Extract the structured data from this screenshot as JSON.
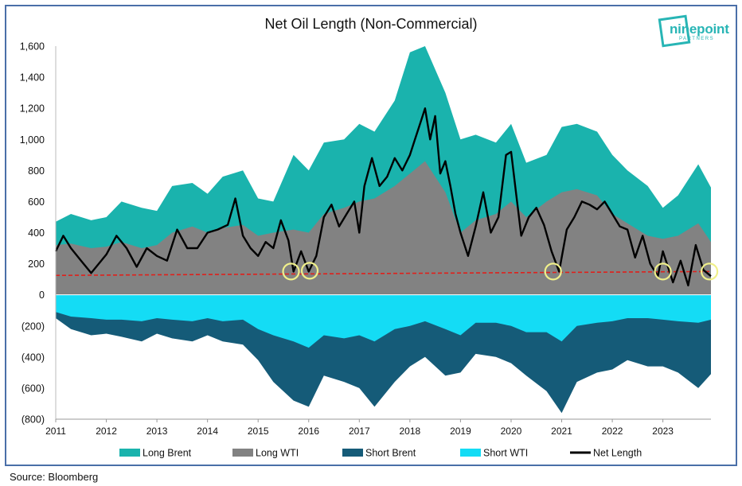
{
  "chart_data": {
    "type": "area",
    "title": "Net Oil Length (Non-Commercial)",
    "source": "Source: Bloomberg",
    "brand": {
      "name": "ninepoint",
      "sub": "PARTNERS"
    },
    "x_ticks": [
      "2011",
      "2012",
      "2013",
      "2014",
      "2015",
      "2016",
      "2017",
      "2018",
      "2019",
      "2020",
      "2021",
      "2022",
      "2023"
    ],
    "y_ticks": [
      "1,600",
      "1,400",
      "1,200",
      "1,000",
      "800",
      "600",
      "400",
      "200",
      "0",
      "(200)",
      "(400)",
      "(600)",
      "(800)"
    ],
    "ylim": [
      -800,
      1600
    ],
    "xlim": [
      2011.0,
      2023.95
    ],
    "colors": {
      "long_brent": "#1ab3ad",
      "long_wti": "#828282",
      "short_brent": "#155b78",
      "short_wti": "#14dcf5",
      "net": "#000000",
      "threshold": "#e0201b",
      "circle": "#f0f08a"
    },
    "threshold_line": {
      "start": [
        2011.0,
        125
      ],
      "end": [
        2023.95,
        150
      ]
    },
    "highlight_points": [
      [
        2015.65,
        150
      ],
      [
        2016.02,
        155
      ],
      [
        2020.83,
        150
      ],
      [
        2023.0,
        150
      ],
      [
        2023.92,
        150
      ]
    ],
    "legend": [
      {
        "key": "long_brent",
        "label": "Long Brent",
        "swatch": "box"
      },
      {
        "key": "long_wti",
        "label": "Long WTI",
        "swatch": "box"
      },
      {
        "key": "short_brent",
        "label": "Short Brent",
        "swatch": "box"
      },
      {
        "key": "short_wti",
        "label": "Short WTI",
        "swatch": "box"
      },
      {
        "key": "net",
        "label": "Net Length",
        "swatch": "line"
      }
    ],
    "series": [
      {
        "key": "long_total",
        "name": "Long Brent",
        "x": [
          2011.0,
          2011.3,
          2011.7,
          2012.0,
          2012.3,
          2012.7,
          2013.0,
          2013.3,
          2013.7,
          2014.0,
          2014.3,
          2014.7,
          2015.0,
          2015.3,
          2015.7,
          2016.0,
          2016.3,
          2016.7,
          2017.0,
          2017.3,
          2017.7,
          2018.0,
          2018.3,
          2018.7,
          2019.0,
          2019.3,
          2019.7,
          2020.0,
          2020.3,
          2020.7,
          2021.0,
          2021.3,
          2021.7,
          2022.0,
          2022.3,
          2022.7,
          2023.0,
          2023.3,
          2023.7,
          2023.95
        ],
        "values": [
          470,
          520,
          480,
          500,
          600,
          560,
          540,
          700,
          720,
          650,
          760,
          800,
          620,
          600,
          900,
          800,
          980,
          1000,
          1100,
          1050,
          1250,
          1560,
          1600,
          1300,
          1000,
          1030,
          980,
          1100,
          850,
          900,
          1080,
          1100,
          1050,
          900,
          800,
          700,
          560,
          640,
          840,
          690
        ]
      },
      {
        "key": "long_wti",
        "name": "Long WTI",
        "x": [
          2011.0,
          2011.3,
          2011.7,
          2012.0,
          2012.3,
          2012.7,
          2013.0,
          2013.3,
          2013.7,
          2014.0,
          2014.3,
          2014.7,
          2015.0,
          2015.3,
          2015.7,
          2016.0,
          2016.3,
          2016.7,
          2017.0,
          2017.3,
          2017.7,
          2018.0,
          2018.3,
          2018.7,
          2019.0,
          2019.3,
          2019.7,
          2020.0,
          2020.3,
          2020.7,
          2021.0,
          2021.3,
          2021.7,
          2022.0,
          2022.3,
          2022.7,
          2023.0,
          2023.3,
          2023.7,
          2023.95
        ],
        "values": [
          320,
          330,
          300,
          310,
          340,
          300,
          320,
          400,
          440,
          400,
          430,
          450,
          380,
          400,
          420,
          400,
          520,
          560,
          600,
          620,
          700,
          780,
          860,
          660,
          400,
          480,
          520,
          600,
          500,
          600,
          660,
          680,
          640,
          520,
          460,
          380,
          360,
          380,
          460,
          340
        ]
      },
      {
        "key": "short_total",
        "name": "Short Brent",
        "x": [
          2011.0,
          2011.3,
          2011.7,
          2012.0,
          2012.3,
          2012.7,
          2013.0,
          2013.3,
          2013.7,
          2014.0,
          2014.3,
          2014.7,
          2015.0,
          2015.3,
          2015.7,
          2016.0,
          2016.3,
          2016.7,
          2017.0,
          2017.3,
          2017.7,
          2018.0,
          2018.3,
          2018.7,
          2019.0,
          2019.3,
          2019.7,
          2020.0,
          2020.3,
          2020.7,
          2021.0,
          2021.3,
          2021.7,
          2022.0,
          2022.3,
          2022.7,
          2023.0,
          2023.3,
          2023.7,
          2023.95
        ],
        "values": [
          -150,
          -220,
          -260,
          -250,
          -270,
          -300,
          -250,
          -280,
          -300,
          -260,
          -300,
          -320,
          -420,
          -560,
          -680,
          -720,
          -520,
          -560,
          -600,
          -720,
          -560,
          -460,
          -400,
          -520,
          -500,
          -380,
          -400,
          -440,
          -520,
          -620,
          -760,
          -560,
          -500,
          -480,
          -420,
          -460,
          -460,
          -500,
          -600,
          -510
        ]
      },
      {
        "key": "short_wti",
        "name": "Short WTI",
        "x": [
          2011.0,
          2011.3,
          2011.7,
          2012.0,
          2012.3,
          2012.7,
          2013.0,
          2013.3,
          2013.7,
          2014.0,
          2014.3,
          2014.7,
          2015.0,
          2015.3,
          2015.7,
          2016.0,
          2016.3,
          2016.7,
          2017.0,
          2017.3,
          2017.7,
          2018.0,
          2018.3,
          2018.7,
          2019.0,
          2019.3,
          2019.7,
          2020.0,
          2020.3,
          2020.7,
          2021.0,
          2021.3,
          2021.7,
          2022.0,
          2022.3,
          2022.7,
          2023.0,
          2023.3,
          2023.7,
          2023.95
        ],
        "values": [
          -110,
          -140,
          -150,
          -160,
          -160,
          -170,
          -150,
          -160,
          -170,
          -150,
          -170,
          -160,
          -220,
          -260,
          -300,
          -340,
          -260,
          -280,
          -260,
          -300,
          -220,
          -200,
          -170,
          -220,
          -260,
          -180,
          -180,
          -200,
          -240,
          -240,
          -300,
          -200,
          -180,
          -170,
          -150,
          -150,
          -160,
          -170,
          -180,
          -160
        ]
      },
      {
        "key": "net",
        "name": "Net Length",
        "x": [
          2011.0,
          2011.15,
          2011.3,
          2011.5,
          2011.7,
          2011.85,
          2012.0,
          2012.2,
          2012.4,
          2012.6,
          2012.8,
          2013.0,
          2013.2,
          2013.4,
          2013.6,
          2013.8,
          2014.0,
          2014.2,
          2014.4,
          2014.55,
          2014.7,
          2014.85,
          2015.0,
          2015.15,
          2015.3,
          2015.45,
          2015.6,
          2015.7,
          2015.85,
          2016.0,
          2016.15,
          2016.3,
          2016.45,
          2016.6,
          2016.75,
          2016.9,
          2017.0,
          2017.1,
          2017.25,
          2017.4,
          2017.55,
          2017.7,
          2017.85,
          2018.0,
          2018.1,
          2018.2,
          2018.3,
          2018.4,
          2018.5,
          2018.6,
          2018.7,
          2018.8,
          2018.9,
          2019.0,
          2019.15,
          2019.3,
          2019.45,
          2019.6,
          2019.75,
          2019.9,
          2020.0,
          2020.1,
          2020.2,
          2020.35,
          2020.5,
          2020.65,
          2020.8,
          2020.95,
          2021.1,
          2021.25,
          2021.4,
          2021.55,
          2021.7,
          2021.85,
          2022.0,
          2022.15,
          2022.3,
          2022.45,
          2022.6,
          2022.75,
          2022.9,
          2023.0,
          2023.1,
          2023.2,
          2023.35,
          2023.5,
          2023.65,
          2023.8,
          2023.95
        ],
        "values": [
          280,
          380,
          300,
          220,
          140,
          200,
          260,
          380,
          300,
          180,
          300,
          250,
          220,
          420,
          300,
          300,
          400,
          420,
          450,
          620,
          380,
          300,
          250,
          340,
          300,
          480,
          350,
          150,
          280,
          150,
          250,
          500,
          580,
          440,
          520,
          600,
          400,
          700,
          880,
          700,
          760,
          880,
          800,
          900,
          1000,
          1100,
          1200,
          1000,
          1150,
          780,
          860,
          700,
          520,
          400,
          250,
          440,
          660,
          400,
          500,
          900,
          920,
          650,
          380,
          500,
          560,
          450,
          280,
          150,
          420,
          500,
          600,
          580,
          550,
          600,
          520,
          440,
          420,
          240,
          380,
          200,
          120,
          280,
          180,
          80,
          220,
          60,
          320,
          160,
          120
        ]
      }
    ]
  }
}
